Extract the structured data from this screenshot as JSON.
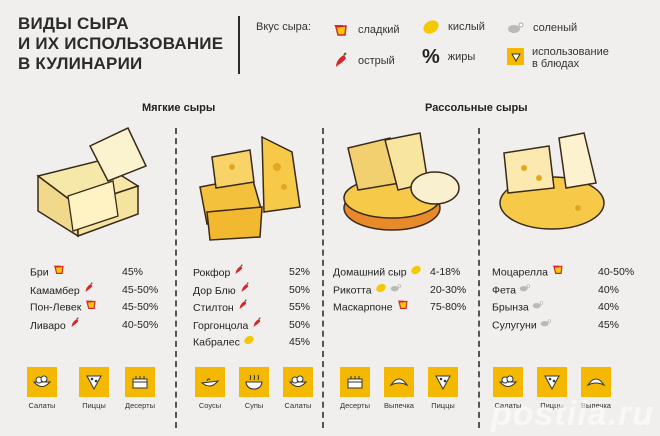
{
  "title": {
    "line1": "Виды сыра",
    "line2": "и их использование",
    "line3": "в кулинарии"
  },
  "legend": {
    "title": "Вкус сыра:",
    "sweet": "сладкий",
    "sour": "кислый",
    "salty": "соленый",
    "spicy": "острый",
    "fat_symbol": "%",
    "fat": "жиры",
    "usage": "использование",
    "usage2": "в блюдах"
  },
  "sections": {
    "soft": "Мягкие сыры",
    "brine": "Рассольные сыры"
  },
  "colors": {
    "accent": "#f4b800",
    "red": "#d7262e",
    "bg": "#f0efed"
  },
  "columns": [
    {
      "rows": [
        {
          "name": "Бри",
          "marks": [
            "sweet"
          ],
          "pct": "45%"
        },
        {
          "name": "Камамбер",
          "marks": [
            "spicy"
          ],
          "pct": "45-50%"
        },
        {
          "name": "Пон-Левек",
          "marks": [
            "sweet"
          ],
          "pct": "45-50%"
        },
        {
          "name": "Ливаро",
          "marks": [
            "spicy"
          ],
          "pct": "40-50%"
        }
      ],
      "usage": [
        {
          "icon": "salad-icon",
          "label": "Салаты"
        },
        {
          "icon": "pizza-icon",
          "label": "Пиццы"
        },
        {
          "icon": "cake-icon",
          "label": "Десерты"
        }
      ]
    },
    {
      "rows": [
        {
          "name": "Рокфор",
          "marks": [
            "spicy"
          ],
          "pct": "52%"
        },
        {
          "name": "Дор Блю",
          "marks": [
            "spicy"
          ],
          "pct": "50%"
        },
        {
          "name": "Стилтон",
          "marks": [
            "spicy"
          ],
          "pct": "55%"
        },
        {
          "name": "Горгонцола",
          "marks": [
            "spicy"
          ],
          "pct": "50%"
        },
        {
          "name": "Кабралес",
          "marks": [
            "sour"
          ],
          "pct": "45%"
        }
      ],
      "usage": [
        {
          "icon": "sauce-icon",
          "label": "Соусы"
        },
        {
          "icon": "soup-icon",
          "label": "Супы"
        },
        {
          "icon": "salad-icon",
          "label": "Салаты"
        }
      ]
    },
    {
      "rows": [
        {
          "name": "Домашний сыр",
          "marks": [
            "sour"
          ],
          "pct": "4-18%"
        },
        {
          "name": "Рикотта",
          "marks": [
            "sour",
            "salty"
          ],
          "pct": "20-30%"
        },
        {
          "name": "Маскарпоне",
          "marks": [
            "sweet"
          ],
          "pct": "75-80%"
        }
      ],
      "usage": [
        {
          "icon": "cake-icon",
          "label": "Десерты"
        },
        {
          "icon": "croissant-icon",
          "label": "Выпечка"
        },
        {
          "icon": "pizza-icon",
          "label": "Пиццы"
        }
      ]
    },
    {
      "rows": [
        {
          "name": "Моцарелла",
          "marks": [
            "sweet"
          ],
          "pct": "40-50%"
        },
        {
          "name": "Фета",
          "marks": [
            "salty"
          ],
          "pct": "40%"
        },
        {
          "name": "Брынза",
          "marks": [
            "salty"
          ],
          "pct": "40%"
        },
        {
          "name": "Сулугуни",
          "marks": [
            "salty"
          ],
          "pct": "45%"
        }
      ],
      "usage": [
        {
          "icon": "salad-icon",
          "label": "Салаты"
        },
        {
          "icon": "pizza-icon",
          "label": "Пиццы"
        },
        {
          "icon": "croissant-icon",
          "label": "Выпечка"
        }
      ]
    }
  ],
  "watermark": "postila.ru"
}
